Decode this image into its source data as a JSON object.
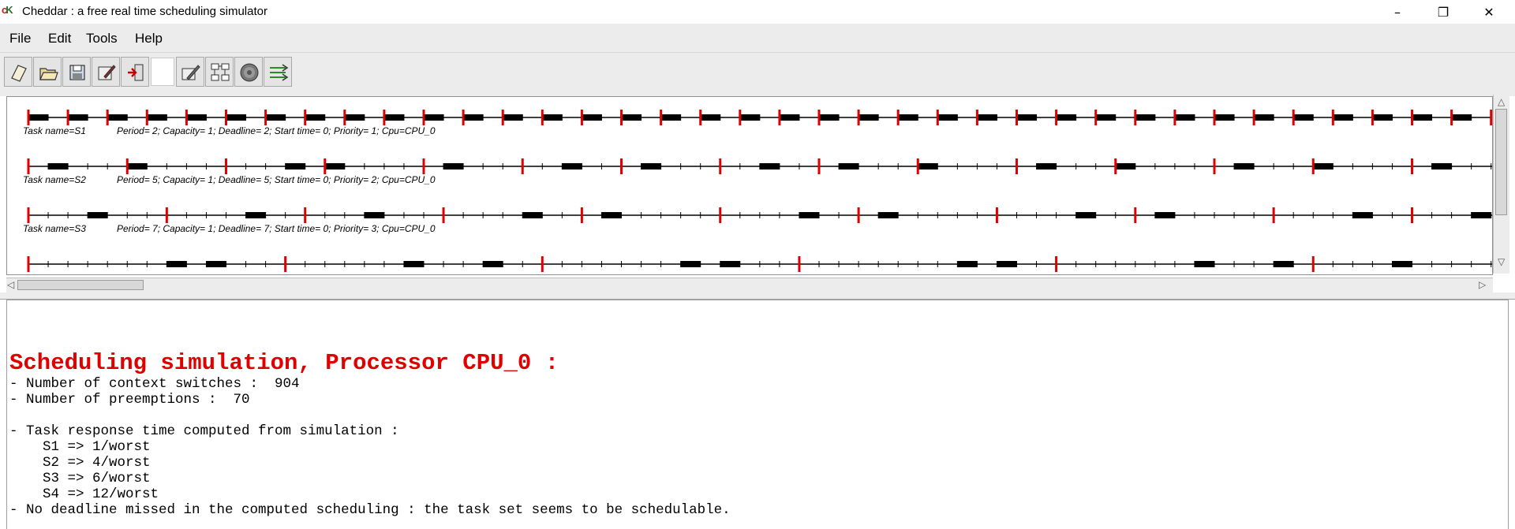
{
  "window": {
    "title": "Cheddar : a free real time scheduling simulator",
    "icon": "cheddar-app-icon",
    "buttons": {
      "minimize": "–",
      "maximize": "❐",
      "close": "✕"
    }
  },
  "menu": {
    "items": [
      "File",
      "Edit",
      "Tools",
      "Help"
    ]
  },
  "toolbar": {
    "buttons": [
      "new-icon",
      "open-icon",
      "save-icon",
      "edit-icon",
      "exit-icon",
      "settings-icon",
      "architecture-icon",
      "gear-wheel-icon",
      "run-simulation-icon"
    ]
  },
  "timeline": {
    "horizon": 74,
    "colors": {
      "deadline": "#e00000",
      "axis": "#000000",
      "exec": "#000000"
    },
    "tasks": [
      {
        "name": "S1",
        "label_name": "Task name=S1",
        "label_params": "Period= 2; Capacity= 1; Deadline= 2; Start time= 0; Priority= 1; Cpu=CPU_0",
        "period": 2,
        "exec": [
          0,
          2,
          4,
          6,
          8,
          10,
          12,
          14,
          16,
          18,
          20,
          22,
          24,
          26,
          28,
          30,
          32,
          34,
          36,
          38,
          40,
          42,
          44,
          46,
          48,
          50,
          52,
          54,
          56,
          58,
          60,
          62,
          64,
          66,
          68,
          70,
          72
        ]
      },
      {
        "name": "S2",
        "label_name": "Task name=S2",
        "label_params": "Period= 5; Capacity= 1; Deadline= 5; Start time= 0; Priority= 2; Cpu=CPU_0",
        "period": 5,
        "exec": [
          1,
          5,
          13,
          15,
          21,
          27,
          31,
          37,
          41,
          45,
          51,
          55,
          61,
          65,
          71
        ]
      },
      {
        "name": "S3",
        "label_name": "Task name=S3",
        "label_params": "Period= 7; Capacity= 1; Deadline= 7; Start time= 0; Priority= 3; Cpu=CPU_0",
        "period": 7,
        "exec": [
          3,
          11,
          17,
          25,
          29,
          39,
          43,
          53,
          57,
          67,
          73
        ]
      },
      {
        "name": "S4",
        "label_name": "",
        "label_params": "",
        "period": 13,
        "exec": [
          7,
          9,
          19,
          23,
          33,
          35,
          47,
          49,
          59,
          63,
          69
        ]
      }
    ]
  },
  "output": {
    "title": "Scheduling simulation, Processor CPU_0 :",
    "lines": [
      "- Number of context switches :  904",
      "- Number of preemptions :  70",
      "",
      "- Task response time computed from simulation :",
      "    S1 => 1/worst",
      "    S2 => 4/worst",
      "    S3 => 6/worst",
      "    S4 => 12/worst",
      "- No deadline missed in the computed scheduling : the task set seems to be schedulable."
    ]
  }
}
